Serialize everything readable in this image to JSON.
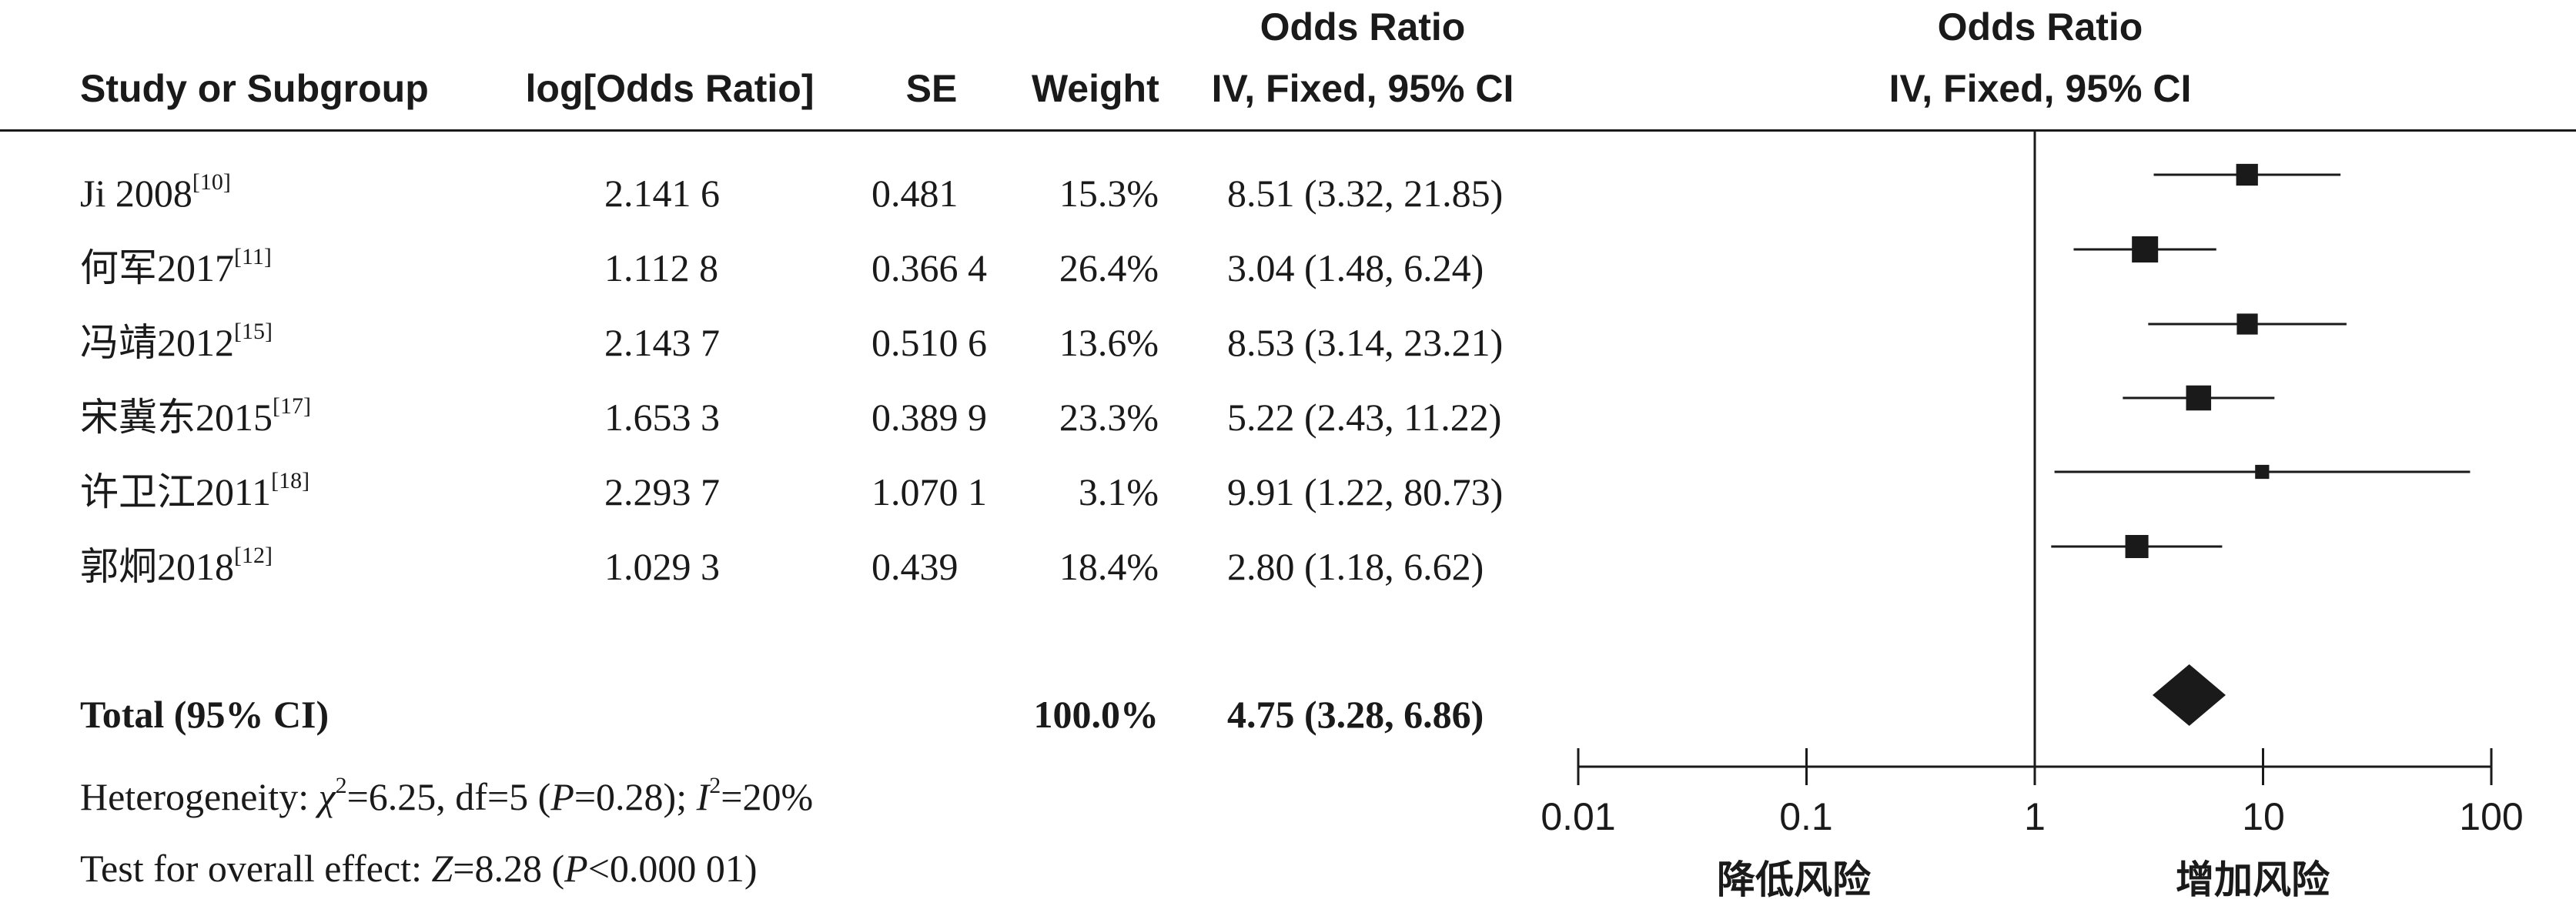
{
  "headers": {
    "study": "Study or Subgroup",
    "logor": "log[Odds Ratio]",
    "se": "SE",
    "weight": "Weight",
    "or_line1": "Odds Ratio",
    "or_line2": "IV, Fixed, 95% CI",
    "plot_line1": "Odds Ratio",
    "plot_line2": "IV, Fixed, 95% CI"
  },
  "total": {
    "label": "Total (95% CI)",
    "weight": "100.0%",
    "ci_text": "4.75 (3.28, 6.86)"
  },
  "footer": {
    "heterogeneity": {
      "prefix": "Heterogeneity: ",
      "chi": "χ",
      "chi_sup": "2",
      "chi_val": "=6.25, df=5 (",
      "p": "P",
      "p_val": "=0.28); ",
      "i": "I",
      "i_sup": "2",
      "i_val": "=20%"
    },
    "overall": {
      "prefix": "Test for overall effect: ",
      "z": "Z",
      "z_val": "=8.28 (",
      "p": "P",
      "p_val": "<0.000 01)"
    }
  },
  "axis": {
    "tick_labels": [
      "0.01",
      "0.1",
      "1",
      "10",
      "100"
    ],
    "left_direction": "降低风险",
    "right_direction": "增加风险"
  },
  "chart_data": {
    "type": "forest",
    "scale": "log",
    "xlim": [
      0.01,
      100
    ],
    "ticks": [
      0.01,
      0.1,
      1,
      10,
      100
    ],
    "reference_line": 1,
    "rows": [
      {
        "study": "Ji 2008",
        "ref": "[10]",
        "logor": "2.141 6",
        "se": "0.481",
        "weight": "15.3%",
        "ci_text": "8.51 (3.32, 21.85)",
        "or": 8.51,
        "lo": 3.32,
        "hi": 21.85,
        "w": 15.3
      },
      {
        "study": "何军2017",
        "ref": "[11]",
        "logor": "1.112 8",
        "se": "0.366 4",
        "weight": "26.4%",
        "ci_text": "3.04 (1.48, 6.24)",
        "or": 3.04,
        "lo": 1.48,
        "hi": 6.24,
        "w": 26.4
      },
      {
        "study": "冯靖2012",
        "ref": "[15]",
        "logor": "2.143 7",
        "se": "0.510 6",
        "weight": "13.6%",
        "ci_text": "8.53 (3.14, 23.21)",
        "or": 8.53,
        "lo": 3.14,
        "hi": 23.21,
        "w": 13.6
      },
      {
        "study": "宋冀东2015",
        "ref": "[17]",
        "logor": "1.653 3",
        "se": "0.389 9",
        "weight": "23.3%",
        "ci_text": "5.22 (2.43, 11.22)",
        "or": 5.22,
        "lo": 2.43,
        "hi": 11.22,
        "w": 23.3
      },
      {
        "study": "许卫江2011",
        "ref": "[18]",
        "logor": "2.293 7",
        "se": "1.070 1",
        "weight": "3.1%",
        "ci_text": "9.91 (1.22, 80.73)",
        "or": 9.91,
        "lo": 1.22,
        "hi": 80.73,
        "w": 3.1
      },
      {
        "study": "郭炯2018",
        "ref": "[12]",
        "logor": "1.029 3",
        "se": "0.439",
        "weight": "18.4%",
        "ci_text": "2.80 (1.18, 6.62)",
        "or": 2.8,
        "lo": 1.18,
        "hi": 6.62,
        "w": 18.4
      }
    ],
    "pooled": {
      "or": 4.75,
      "lo": 3.28,
      "hi": 6.86
    }
  }
}
